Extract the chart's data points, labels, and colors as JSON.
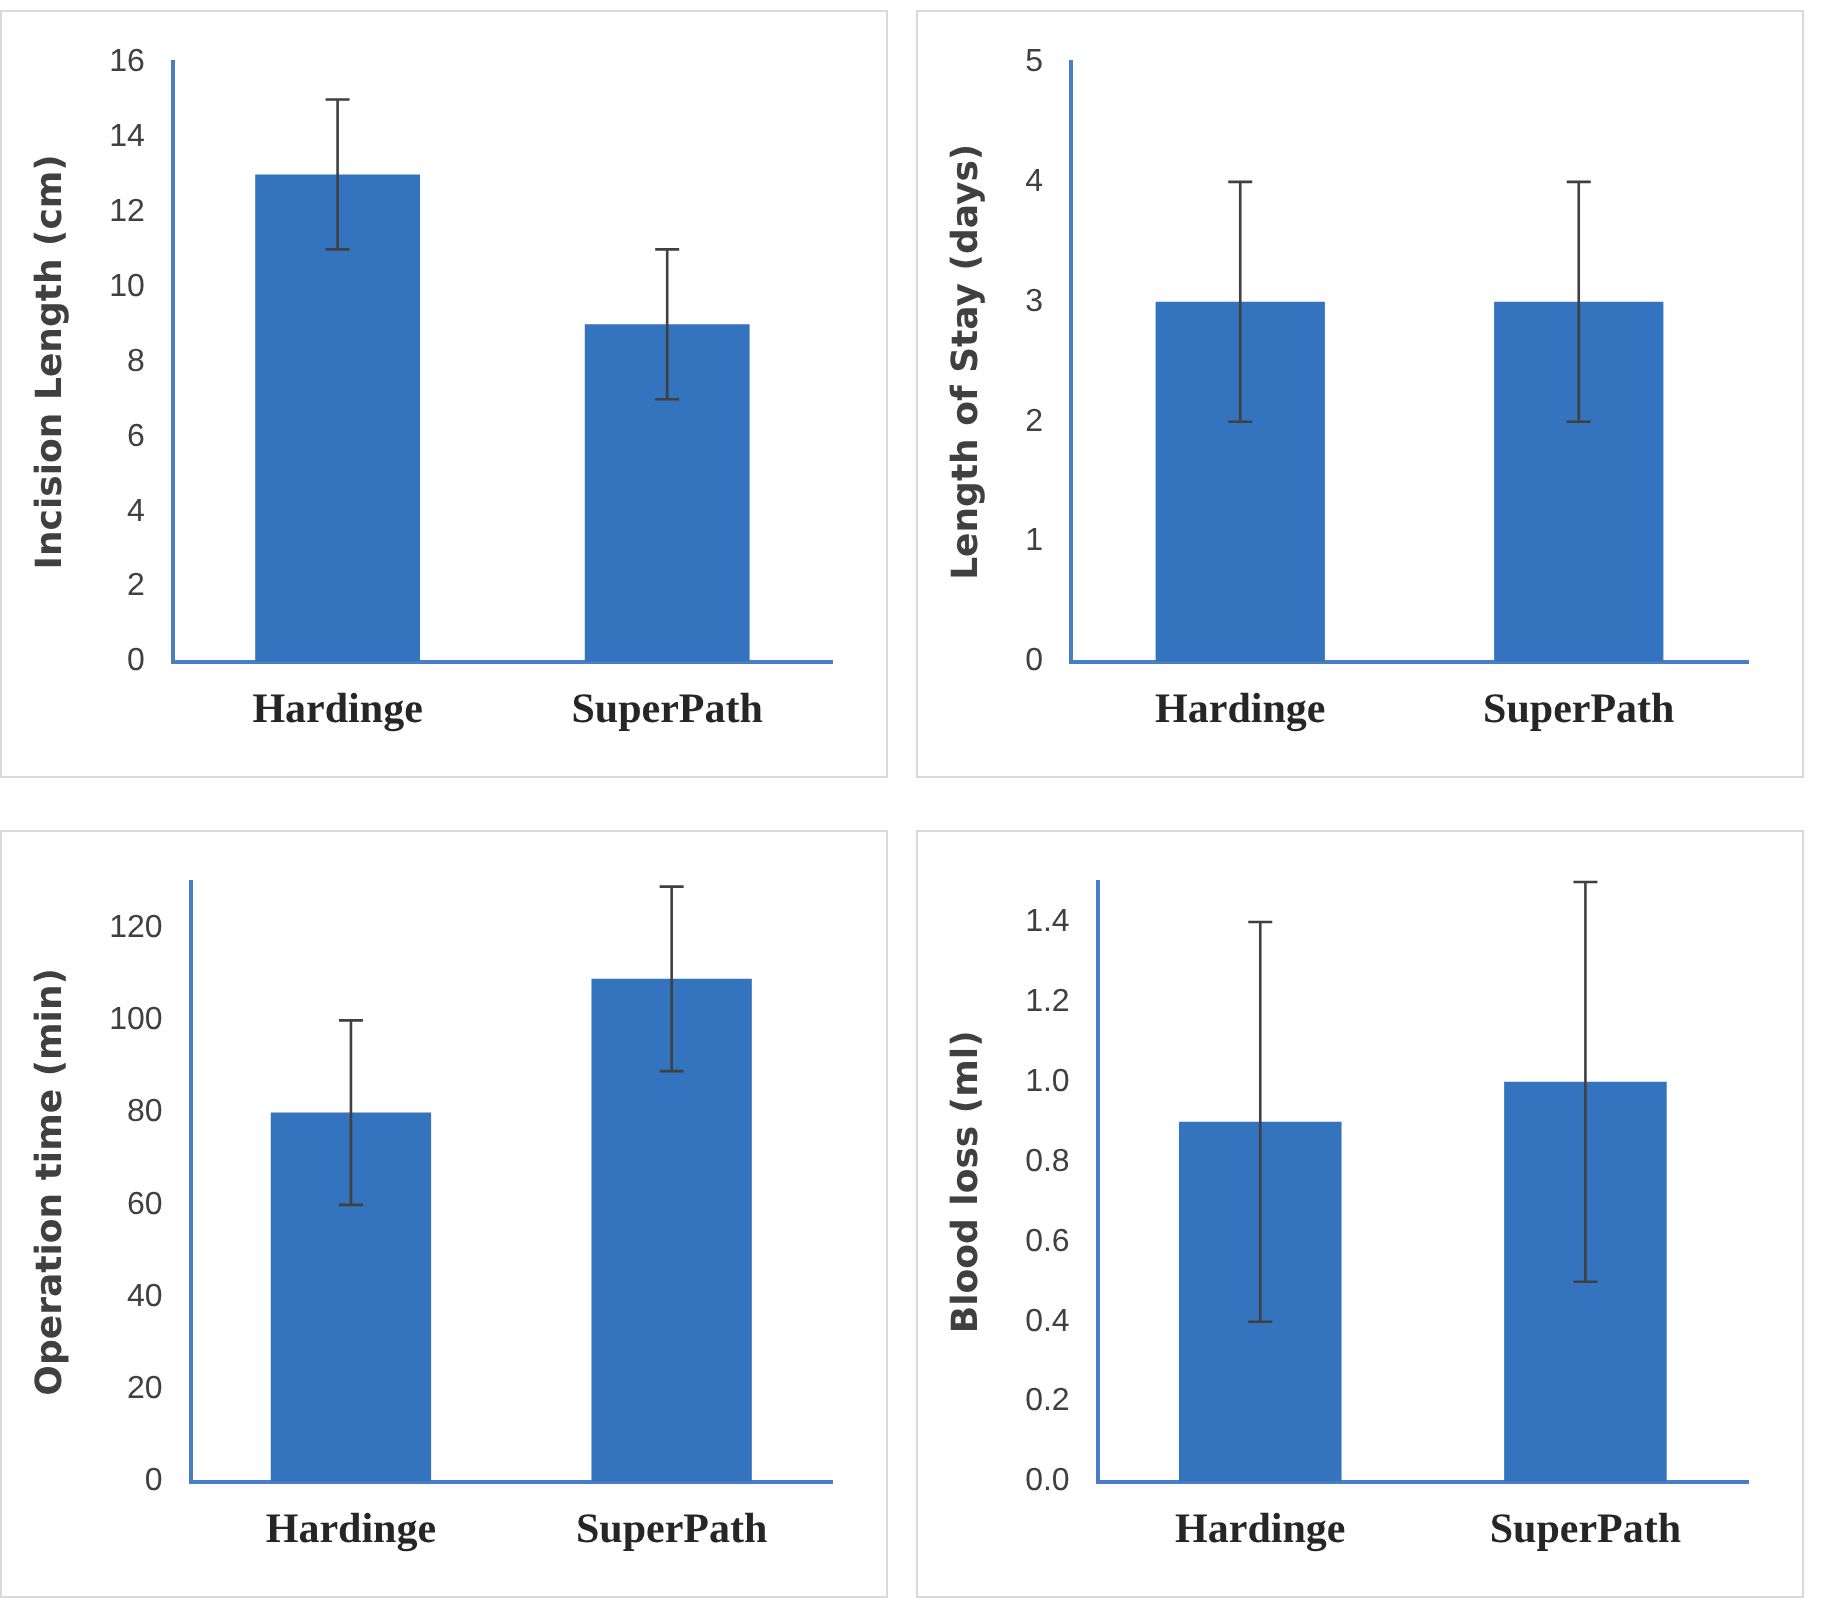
{
  "chart_data": [
    {
      "type": "bar",
      "ylabel": "Incision Length (cm)",
      "categories": [
        "Hardinge",
        "SuperPath"
      ],
      "values": [
        13,
        9
      ],
      "errors": [
        2,
        2
      ],
      "color": "#3473bd",
      "ylim": [
        0,
        16
      ],
      "yticks": [
        0,
        2,
        4,
        6,
        8,
        10,
        12,
        14,
        16
      ],
      "grid": false,
      "legend": false
    },
    {
      "type": "bar",
      "ylabel": "Length of Stay (days)",
      "categories": [
        "Hardinge",
        "SuperPath"
      ],
      "values": [
        3,
        3
      ],
      "errors": [
        1,
        1
      ],
      "color": "#3473bd",
      "ylim": [
        0,
        5
      ],
      "yticks": [
        0,
        1,
        2,
        3,
        4,
        5
      ],
      "grid": false,
      "legend": false
    },
    {
      "type": "bar",
      "ylabel": "Operation time (min)",
      "categories": [
        "Hardinge",
        "SuperPath"
      ],
      "values": [
        80,
        109
      ],
      "errors": [
        20,
        20
      ],
      "color": "#3473bd",
      "ylim": [
        0,
        130
      ],
      "yticks": [
        0,
        20,
        40,
        60,
        80,
        100,
        120
      ],
      "grid": false,
      "legend": false
    },
    {
      "type": "bar",
      "ylabel": "Blood loss (ml)",
      "categories": [
        "Hardinge",
        "SuperPath"
      ],
      "values": [
        0.9,
        1.0
      ],
      "errors": [
        0.5,
        0.5
      ],
      "color": "#3473bd",
      "ylim": [
        0,
        1.5
      ],
      "yticks": [
        {
          "value": 0,
          "label": "0.0"
        },
        0.2,
        0.4,
        0.6,
        0.8,
        {
          "value": 1,
          "label": "1.0"
        },
        1.2,
        1.4
      ],
      "grid": false,
      "legend": false
    }
  ]
}
